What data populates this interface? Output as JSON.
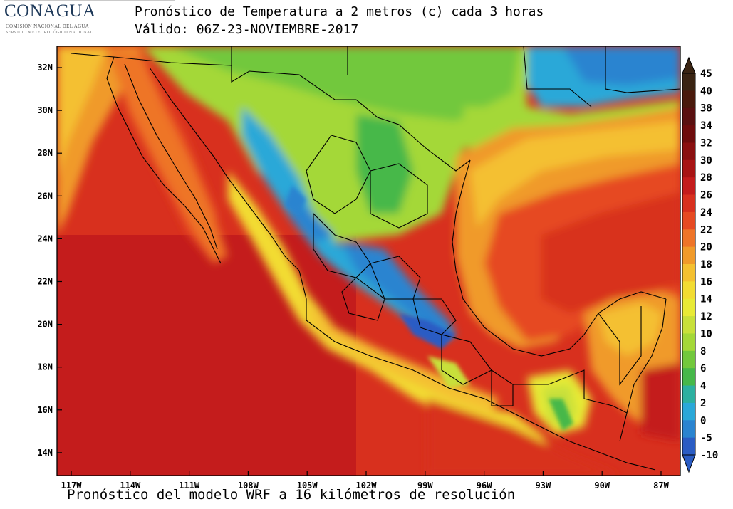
{
  "header": {
    "logo_main": "CONAGUA",
    "logo_sub_1": "COMISIÓN NACIONAL DEL AGUA",
    "logo_sub_2": "SERVICIO METEOROLÓGICO NACIONAL",
    "title_line_1": "Pronóstico de Temperatura a 2 metros (c) cada 3 horas",
    "title_line_2": "Válido: 06Z-23-NOVIEMBRE-2017"
  },
  "map": {
    "lat_labels": [
      "32N",
      "30N",
      "28N",
      "26N",
      "24N",
      "22N",
      "20N",
      "18N",
      "16N",
      "14N"
    ],
    "lon_labels": [
      "117W",
      "114W",
      "111W",
      "108W",
      "105W",
      "102W",
      "99W",
      "96W",
      "93W",
      "90W",
      "87W"
    ]
  },
  "colorbar": {
    "labels": [
      "45",
      "40",
      "38",
      "34",
      "32",
      "30",
      "28",
      "26",
      "24",
      "22",
      "20",
      "18",
      "16",
      "14",
      "12",
      "10",
      "8",
      "6",
      "4",
      "2",
      "0",
      "-5",
      "-10"
    ],
    "colors": [
      "#3a2412",
      "#4a1a0c",
      "#5a1010",
      "#6e0c0c",
      "#8a0f0f",
      "#a81414",
      "#c41c1c",
      "#d8301e",
      "#e64a22",
      "#ee7428",
      "#f09a2a",
      "#f4c030",
      "#f2dc32",
      "#e8ea36",
      "#c8e03a",
      "#a4d838",
      "#72c83c",
      "#46b84a",
      "#2cb0a0",
      "#2aa8d8",
      "#2a84d0",
      "#2a5cc4"
    ]
  },
  "footer": {
    "text": "Pronóstico del modelo WRF a 16 kilómetros de resolución"
  }
}
